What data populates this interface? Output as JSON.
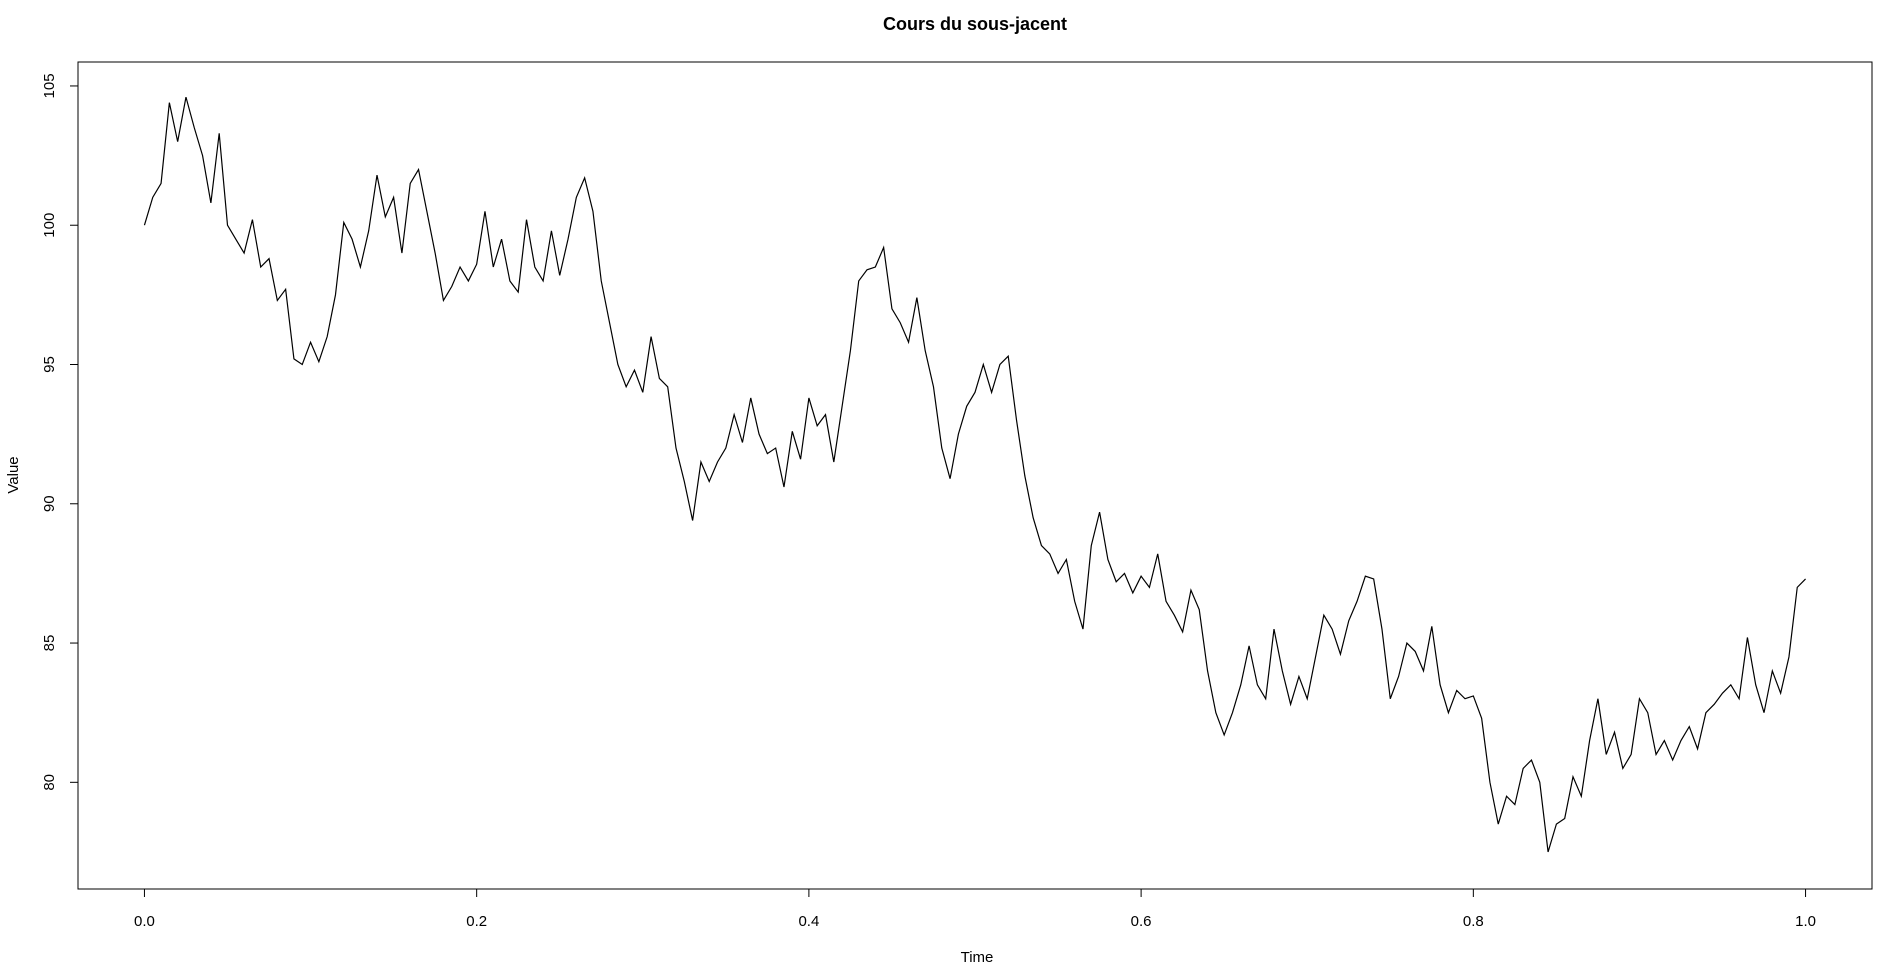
{
  "chart_data": {
    "type": "line",
    "title": "Cours du sous-jacent",
    "x_label": "Time",
    "y_label": "Value",
    "color": "#000000",
    "x": [
      0,
      0.005,
      0.01,
      0.015,
      0.02,
      0.025,
      0.03,
      0.035,
      0.04,
      0.045,
      0.05,
      0.055,
      0.06,
      0.065,
      0.07,
      0.075,
      0.08,
      0.085,
      0.09,
      0.095,
      0.1,
      0.105,
      0.11,
      0.115,
      0.12,
      0.125,
      0.13,
      0.135,
      0.14,
      0.145,
      0.15,
      0.155,
      0.16,
      0.165,
      0.17,
      0.175,
      0.18,
      0.185,
      0.19,
      0.195,
      0.2,
      0.205,
      0.21,
      0.215,
      0.22,
      0.225,
      0.23,
      0.235,
      0.24,
      0.245,
      0.25,
      0.255,
      0.26,
      0.265,
      0.27,
      0.275,
      0.28,
      0.285,
      0.29,
      0.295,
      0.3,
      0.305,
      0.31,
      0.315,
      0.32,
      0.325,
      0.33,
      0.335,
      0.34,
      0.345,
      0.35,
      0.355,
      0.36,
      0.365,
      0.37,
      0.375,
      0.38,
      0.385,
      0.39,
      0.395,
      0.4,
      0.405,
      0.41,
      0.415,
      0.42,
      0.425,
      0.43,
      0.435,
      0.44,
      0.445,
      0.45,
      0.455,
      0.46,
      0.465,
      0.47,
      0.475,
      0.48,
      0.485,
      0.49,
      0.495,
      0.5,
      0.505,
      0.51,
      0.515,
      0.52,
      0.525,
      0.53,
      0.535,
      0.54,
      0.545,
      0.55,
      0.555,
      0.56,
      0.565,
      0.57,
      0.575,
      0.58,
      0.585,
      0.59,
      0.595,
      0.6,
      0.605,
      0.61,
      0.615,
      0.62,
      0.625,
      0.63,
      0.635,
      0.64,
      0.645,
      0.65,
      0.655,
      0.66,
      0.665,
      0.67,
      0.675,
      0.68,
      0.685,
      0.69,
      0.695,
      0.7,
      0.705,
      0.71,
      0.715,
      0.72,
      0.725,
      0.73,
      0.735,
      0.74,
      0.745,
      0.75,
      0.755,
      0.76,
      0.765,
      0.77,
      0.775,
      0.78,
      0.785,
      0.79,
      0.795,
      0.8,
      0.805,
      0.81,
      0.815,
      0.82,
      0.825,
      0.83,
      0.835,
      0.84,
      0.845,
      0.85,
      0.855,
      0.86,
      0.865,
      0.87,
      0.875,
      0.88,
      0.885,
      0.89,
      0.895,
      0.9,
      0.905,
      0.91,
      0.915,
      0.92,
      0.925,
      0.93,
      0.935,
      0.94,
      0.945,
      0.95,
      0.955,
      0.96,
      0.965,
      0.97,
      0.975,
      0.98,
      0.985,
      0.99,
      0.995,
      1
    ],
    "values": [
      100.0,
      101.0,
      101.5,
      104.4,
      103.0,
      104.6,
      103.5,
      102.5,
      100.8,
      103.3,
      100.0,
      99.5,
      99.0,
      100.2,
      98.5,
      98.8,
      97.3,
      97.7,
      95.2,
      95.0,
      95.8,
      95.1,
      96.0,
      97.5,
      100.1,
      99.5,
      98.5,
      99.8,
      101.8,
      100.3,
      101.0,
      99.0,
      101.5,
      102.0,
      100.5,
      99.0,
      97.3,
      97.8,
      98.5,
      98.0,
      98.6,
      100.5,
      98.5,
      99.5,
      98.0,
      97.6,
      100.2,
      98.5,
      98.0,
      99.8,
      98.2,
      99.5,
      101.0,
      101.7,
      100.5,
      98.0,
      96.5,
      95.0,
      94.2,
      94.8,
      94.0,
      96.0,
      94.5,
      94.2,
      92.0,
      90.8,
      89.4,
      91.5,
      90.8,
      91.5,
      92.0,
      93.2,
      92.2,
      93.8,
      92.5,
      91.8,
      92.0,
      90.6,
      92.6,
      91.6,
      93.8,
      92.8,
      93.2,
      91.5,
      93.5,
      95.5,
      98.0,
      98.4,
      98.5,
      99.2,
      97.0,
      96.5,
      95.8,
      97.4,
      95.5,
      94.2,
      92.0,
      90.9,
      92.5,
      93.5,
      94.0,
      95.0,
      94.0,
      95.0,
      95.3,
      93.0,
      91.0,
      89.5,
      88.5,
      88.2,
      87.5,
      88.0,
      86.5,
      85.5,
      88.5,
      89.7,
      88.0,
      87.2,
      87.5,
      86.8,
      87.4,
      87.0,
      88.2,
      86.5,
      86.0,
      85.4,
      86.9,
      86.2,
      84.0,
      82.5,
      81.7,
      82.5,
      83.5,
      84.9,
      83.5,
      83.0,
      85.5,
      84.0,
      82.8,
      83.8,
      83.0,
      84.5,
      86.0,
      85.5,
      84.6,
      85.8,
      86.5,
      87.4,
      87.3,
      85.5,
      83.0,
      83.8,
      85.0,
      84.7,
      84.0,
      85.6,
      83.5,
      82.5,
      83.3,
      83.0,
      83.1,
      82.3,
      80.0,
      78.5,
      79.5,
      79.2,
      80.5,
      80.8,
      80.0,
      77.5,
      78.5,
      78.7,
      80.2,
      79.5,
      81.5,
      83.0,
      81.0,
      81.8,
      80.5,
      81.0,
      83.0,
      82.5,
      81.0,
      81.5,
      80.8,
      81.5,
      82.0,
      81.2,
      82.5,
      82.8,
      83.2,
      83.5,
      83.0,
      85.2,
      83.5,
      82.5,
      84.0,
      83.2,
      84.5,
      87.0,
      87.3
    ],
    "xlim": [
      -0.04,
      1.04
    ],
    "ylim": [
      76.17,
      105.86
    ],
    "xticks": [
      {
        "value": 0,
        "label": "0.0"
      },
      0.2,
      0.4,
      0.6,
      0.8,
      {
        "value": 1,
        "label": "1.0"
      }
    ],
    "yticks": [
      80,
      85,
      90,
      95,
      100,
      105
    ]
  }
}
